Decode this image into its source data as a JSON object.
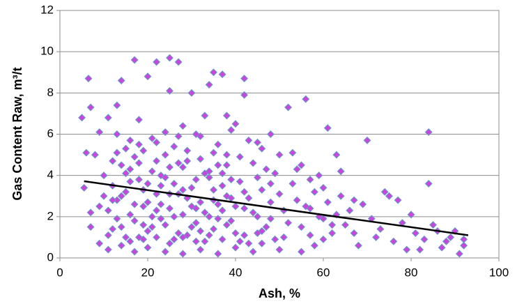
{
  "chart_data": {
    "type": "scatter",
    "xlabel": "Ash, %",
    "ylabel": "Gas Content Raw, m³/t",
    "xlim": [
      0,
      100
    ],
    "xticks": [
      0,
      20,
      40,
      60,
      80,
      100
    ],
    "ylim": [
      0,
      12
    ],
    "yticks": [
      0,
      2,
      4,
      6,
      8,
      10,
      12
    ],
    "grid": true,
    "color": "#cc44dd",
    "edgecolor": "#6f8fca",
    "x": [
      6.5,
      7,
      5,
      17,
      20,
      22,
      25,
      27,
      25,
      30,
      35,
      37,
      42,
      34,
      42,
      56,
      61,
      70,
      84,
      84,
      63,
      64,
      75,
      77,
      80,
      85,
      90,
      92,
      91,
      88,
      82,
      72,
      68,
      60,
      57,
      53,
      49,
      48,
      45,
      52,
      40,
      38,
      33,
      28,
      24,
      18,
      13,
      14,
      11,
      9,
      8,
      6,
      5.5,
      7,
      7,
      9,
      11,
      14,
      17,
      20,
      24,
      28,
      32,
      36,
      40,
      44,
      50,
      55,
      58,
      62,
      10,
      12,
      13,
      14,
      15,
      16,
      17,
      18,
      19,
      20,
      21,
      22,
      23,
      24,
      25,
      26,
      27,
      28,
      29,
      30,
      31,
      32,
      33,
      34,
      35,
      36,
      37,
      38,
      39,
      40,
      41,
      42,
      43,
      44,
      45,
      46,
      47,
      48,
      49,
      50,
      11,
      12,
      13,
      14,
      15,
      16,
      17,
      18,
      19,
      20,
      21,
      22,
      23,
      24,
      25,
      26,
      27,
      28,
      29,
      30,
      31,
      32,
      33,
      34,
      35,
      36,
      37,
      38,
      39,
      40,
      41,
      42,
      43,
      44,
      45,
      46,
      47,
      48,
      51,
      52,
      53,
      54,
      55,
      56,
      57,
      58,
      59,
      60,
      61,
      62,
      12,
      15,
      18,
      21,
      23,
      26,
      29,
      32,
      35,
      38,
      10,
      13,
      16,
      19,
      22,
      25,
      28,
      31,
      34,
      37,
      11,
      14,
      17,
      20,
      23,
      26,
      29,
      32,
      35,
      38,
      9,
      12,
      15,
      18,
      21,
      24,
      27,
      30,
      33,
      36,
      39,
      42,
      45,
      48,
      51,
      54,
      57,
      60,
      63,
      66,
      65,
      67,
      69,
      71,
      73,
      76,
      78,
      79,
      81,
      83,
      86,
      87,
      89,
      92,
      74,
      67,
      64,
      59,
      55,
      50,
      46,
      43,
      39,
      36,
      31,
      27,
      22,
      19,
      16,
      13,
      16,
      19,
      22,
      25,
      28,
      31,
      34,
      37,
      41,
      46
    ],
    "values": [
      8.7,
      7.3,
      6.8,
      9.6,
      8.8,
      9.5,
      9.7,
      9.5,
      8.1,
      8.0,
      9.0,
      8.9,
      8.7,
      8.4,
      7.9,
      7.7,
      6.3,
      5.7,
      6.1,
      3.6,
      5.0,
      4.2,
      3.0,
      2.8,
      2.1,
      1.6,
      1.3,
      0.6,
      0.2,
      0.8,
      0.4,
      1.0,
      0.6,
      1.9,
      3.8,
      5.1,
      4.1,
      6.0,
      5.6,
      7.3,
      6.5,
      6.9,
      6.9,
      6.4,
      6.1,
      6.7,
      7.4,
      8.6,
      6.8,
      6.1,
      5.0,
      5.1,
      3.4,
      2.2,
      1.5,
      0.7,
      0.4,
      0.6,
      0.3,
      0.5,
      0.3,
      0.2,
      0.4,
      0.2,
      0.5,
      0.3,
      0.4,
      0.3,
      0.6,
      1.2,
      4.0,
      3.5,
      2.8,
      4.5,
      3.2,
      2.1,
      4.9,
      3.8,
      1.6,
      2.7,
      4.2,
      3.1,
      1.9,
      5.0,
      2.4,
      3.6,
      1.2,
      4.4,
      2.9,
      3.4,
      1.7,
      4.8,
      2.2,
      3.9,
      1.4,
      2.6,
      4.1,
      3.0,
      1.8,
      2.5,
      3.7,
      1.1,
      2.9,
      4.6,
      2.0,
      3.3,
      1.5,
      2.7,
      0.9,
      3.1,
      2.3,
      1.4,
      5.1,
      3.0,
      1.0,
      4.3,
      2.6,
      5.5,
      3.3,
      1.3,
      2.0,
      4.7,
      3.5,
      1.6,
      4.4,
      0.9,
      3.1,
      2.1,
      5.2,
      1.5,
      3.8,
      2.7,
      0.8,
      4.2,
      3.3,
      1.9,
      2.3,
      5.0,
      2.9,
      1.2,
      4.9,
      3.2,
      0.7,
      2.2,
      3.9,
      1.3,
      4.3,
      1.9,
      2.3,
      1.7,
      3.6,
      2.8,
      1.5,
      2.5,
      1.1,
      3.2,
      2.0,
      0.9,
      2.7,
      1.6,
      4.7,
      5.3,
      4.6,
      5.8,
      4.0,
      5.4,
      4.7,
      5.9,
      5.1,
      4.5,
      3.0,
      1.9,
      3.7,
      2.5,
      2.3,
      3.1,
      3.3,
      2.4,
      2.0,
      3.5,
      1.1,
      1.5,
      1.8,
      3.6,
      2.6,
      2.0,
      1.1,
      1.3,
      2.8,
      1.6,
      2.5,
      2.8,
      4.1,
      1.0,
      1.5,
      3.9,
      4.6,
      2.5,
      4.1,
      4.5,
      3.8,
      2.4,
      1.2,
      3.6,
      1.0,
      4.3,
      2.4,
      3.4,
      2.1,
      2.3,
      1.6,
      1.2,
      2.6,
      1.9,
      1.4,
      0.8,
      1.7,
      0.4,
      1.2,
      0.9,
      1.3,
      0.5,
      1.0,
      0.9,
      3.2,
      2.8,
      3.0,
      4.0,
      4.5,
      5.0,
      5.3,
      5.7,
      6.2,
      5.5,
      6.0,
      5.9,
      5.6,
      5.2,
      5.7,
      6.0,
      0.8,
      0.9,
      1.0,
      0.7,
      1.0,
      0.8,
      1.1,
      0.9,
      0.8,
      0.7
    ],
    "trendline": {
      "x": [
        5.5,
        93
      ],
      "values": [
        3.72,
        1.1
      ],
      "color": "#000000"
    }
  }
}
